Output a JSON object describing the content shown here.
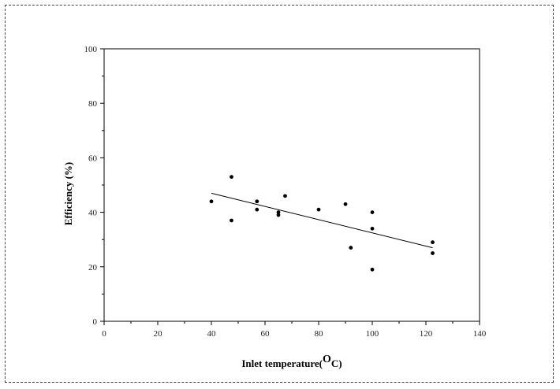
{
  "chart_data": {
    "type": "scatter",
    "title": "",
    "xlabel": "Inlet temperature(",
    "xlabel_sup": "O",
    "xlabel_tail": "C)",
    "ylabel": "Efficiency (%)",
    "xlim": [
      0,
      140
    ],
    "ylim": [
      0,
      100
    ],
    "xticks": [
      0,
      20,
      40,
      60,
      80,
      100,
      120,
      140
    ],
    "yticks": [
      0,
      20,
      40,
      60,
      80,
      100
    ],
    "grid": false,
    "series": [
      {
        "points": [
          [
            40,
            44
          ],
          [
            47.5,
            53
          ],
          [
            47.5,
            37
          ],
          [
            57,
            44
          ],
          [
            57,
            41
          ],
          [
            65,
            40
          ],
          [
            65,
            39
          ],
          [
            67.5,
            46
          ],
          [
            80,
            41
          ],
          [
            90,
            43
          ],
          [
            92,
            27
          ],
          [
            100,
            40
          ],
          [
            100,
            34
          ],
          [
            100,
            19
          ],
          [
            122.5,
            29
          ],
          [
            122.5,
            25
          ]
        ]
      }
    ],
    "trendline": {
      "type": "linear",
      "x": [
        40,
        122.5
      ],
      "y": [
        47,
        27
      ]
    }
  }
}
